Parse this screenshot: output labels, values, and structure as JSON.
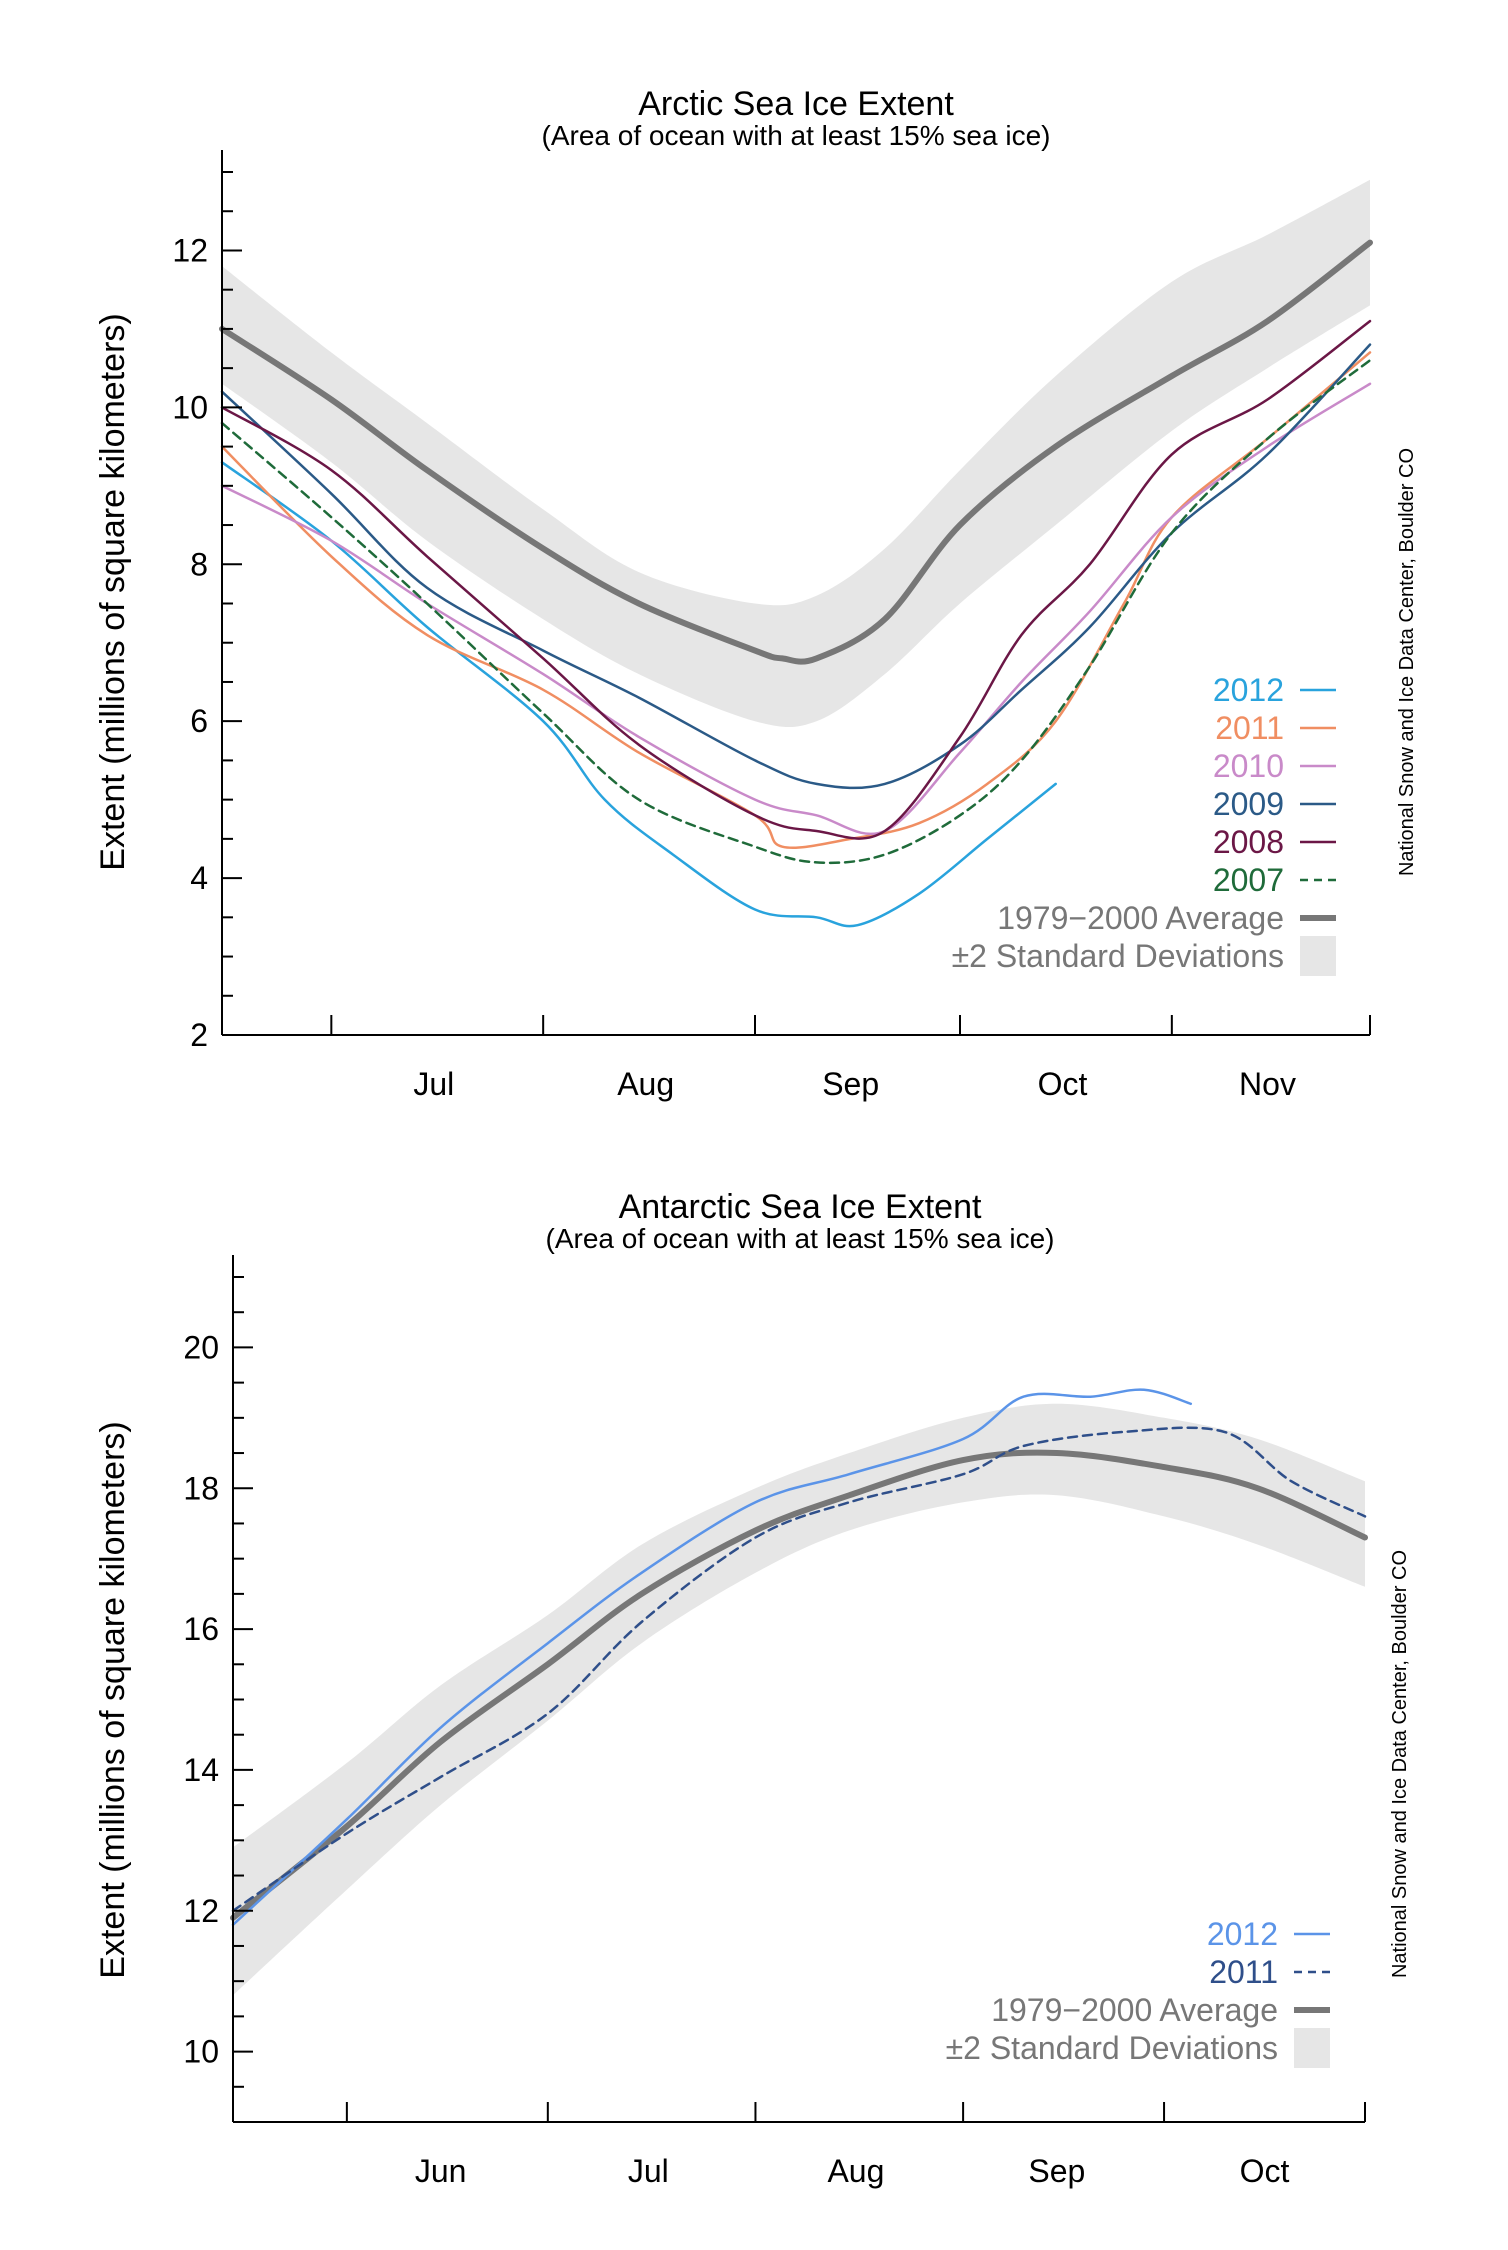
{
  "chart_data": [
    {
      "type": "line",
      "title": "Arctic Sea Ice Extent",
      "subtitle": "(Area of ocean with at least 15% sea ice)",
      "ylabel": "Extent (millions of square kilometers)",
      "credit": "National Snow and Ice Data Center, Boulder CO",
      "xlim": [
        "Jun 15",
        "Nov 30"
      ],
      "ylim": [
        2,
        13
      ],
      "yticks": [
        2,
        4,
        6,
        8,
        10,
        12
      ],
      "month_ticks": [
        "Jul 1",
        "Aug 1",
        "Sep 1",
        "Oct 1",
        "Nov 1"
      ],
      "month_labels": [
        {
          "label": "Jul",
          "at": "Jul 16"
        },
        {
          "label": "Aug",
          "at": "Aug 16"
        },
        {
          "label": "Sep",
          "at": "Sep 15"
        },
        {
          "label": "Oct",
          "at": "Oct 16"
        },
        {
          "label": "Nov",
          "at": "Nov 15"
        }
      ],
      "band": {
        "name": "±2 Standard Deviations",
        "color": "#e6e6e6",
        "points": [
          [
            "Jun 15",
            10.3,
            11.8
          ],
          [
            "Jul 1",
            9.3,
            10.7
          ],
          [
            "Jul 15",
            8.3,
            9.8
          ],
          [
            "Aug 1",
            7.3,
            8.7
          ],
          [
            "Aug 15",
            6.6,
            7.9
          ],
          [
            "Sep 1",
            6.0,
            7.5
          ],
          [
            "Sep 10",
            6.0,
            7.6
          ],
          [
            "Sep 20",
            6.6,
            8.2
          ],
          [
            "Oct 1",
            7.5,
            9.2
          ],
          [
            "Oct 15",
            8.5,
            10.4
          ],
          [
            "Nov 1",
            9.7,
            11.6
          ],
          [
            "Nov 15",
            10.5,
            12.2
          ],
          [
            "Nov 30",
            11.3,
            12.9
          ]
        ]
      },
      "series": [
        {
          "name": "1979−2000 Average",
          "color": "#777777",
          "dash": false,
          "width": 6,
          "points": [
            [
              "Jun 15",
              11.0
            ],
            [
              "Jul 1",
              10.1
            ],
            [
              "Jul 15",
              9.2
            ],
            [
              "Aug 1",
              8.2
            ],
            [
              "Aug 15",
              7.5
            ],
            [
              "Sep 1",
              6.9
            ],
            [
              "Sep 5",
              6.8
            ],
            [
              "Sep 10",
              6.8
            ],
            [
              "Sep 20",
              7.3
            ],
            [
              "Oct 1",
              8.5
            ],
            [
              "Oct 15",
              9.5
            ],
            [
              "Nov 1",
              10.4
            ],
            [
              "Nov 15",
              11.1
            ],
            [
              "Nov 30",
              12.1
            ]
          ]
        },
        {
          "name": "2012",
          "color": "#29a3dd",
          "dash": false,
          "width": 2.5,
          "points": [
            [
              "Jun 15",
              9.3
            ],
            [
              "Jul 1",
              8.3
            ],
            [
              "Jul 15",
              7.2
            ],
            [
              "Aug 1",
              6.0
            ],
            [
              "Aug 10",
              5.0
            ],
            [
              "Aug 20",
              4.3
            ],
            [
              "Sep 1",
              3.6
            ],
            [
              "Sep 10",
              3.5
            ],
            [
              "Sep 16",
              3.4
            ],
            [
              "Sep 25",
              3.8
            ],
            [
              "Oct 5",
              4.5
            ],
            [
              "Oct 15",
              5.2
            ]
          ]
        },
        {
          "name": "2011",
          "color": "#f08e62",
          "dash": false,
          "width": 2.5,
          "points": [
            [
              "Jun 15",
              9.5
            ],
            [
              "Jul 1",
              8.1
            ],
            [
              "Jul 15",
              7.1
            ],
            [
              "Aug 1",
              6.4
            ],
            [
              "Aug 15",
              5.6
            ],
            [
              "Sep 1",
              4.8
            ],
            [
              "Sep 5",
              4.4
            ],
            [
              "Sep 15",
              4.5
            ],
            [
              "Sep 25",
              4.7
            ],
            [
              "Oct 5",
              5.2
            ],
            [
              "Oct 15",
              6.0
            ],
            [
              "Oct 25",
              7.5
            ],
            [
              "Nov 1",
              8.6
            ],
            [
              "Nov 15",
              9.6
            ],
            [
              "Nov 30",
              10.7
            ]
          ]
        },
        {
          "name": "2010",
          "color": "#c98ac9",
          "dash": false,
          "width": 2.5,
          "points": [
            [
              "Jun 15",
              9.0
            ],
            [
              "Jul 1",
              8.3
            ],
            [
              "Jul 15",
              7.5
            ],
            [
              "Aug 1",
              6.6
            ],
            [
              "Aug 15",
              5.8
            ],
            [
              "Sep 1",
              5.0
            ],
            [
              "Sep 10",
              4.8
            ],
            [
              "Sep 20",
              4.6
            ],
            [
              "Oct 1",
              5.6
            ],
            [
              "Oct 10",
              6.5
            ],
            [
              "Oct 20",
              7.4
            ],
            [
              "Nov 1",
              8.6
            ],
            [
              "Nov 15",
              9.5
            ],
            [
              "Nov 30",
              10.3
            ]
          ]
        },
        {
          "name": "2009",
          "color": "#2b5a87",
          "dash": false,
          "width": 2.5,
          "points": [
            [
              "Jun 15",
              10.2
            ],
            [
              "Jul 1",
              8.9
            ],
            [
              "Jul 15",
              7.7
            ],
            [
              "Aug 1",
              6.9
            ],
            [
              "Aug 15",
              6.3
            ],
            [
              "Sep 1",
              5.5
            ],
            [
              "Sep 10",
              5.2
            ],
            [
              "Sep 20",
              5.2
            ],
            [
              "Oct 1",
              5.7
            ],
            [
              "Oct 10",
              6.4
            ],
            [
              "Oct 20",
              7.2
            ],
            [
              "Nov 1",
              8.4
            ],
            [
              "Nov 15",
              9.4
            ],
            [
              "Nov 30",
              10.8
            ]
          ]
        },
        {
          "name": "2008",
          "color": "#6b1746",
          "dash": false,
          "width": 2.5,
          "points": [
            [
              "Jun 15",
              10.0
            ],
            [
              "Jul 1",
              9.2
            ],
            [
              "Jul 15",
              8.1
            ],
            [
              "Aug 1",
              6.8
            ],
            [
              "Aug 15",
              5.7
            ],
            [
              "Sep 1",
              4.8
            ],
            [
              "Sep 10",
              4.6
            ],
            [
              "Sep 20",
              4.6
            ],
            [
              "Oct 1",
              5.8
            ],
            [
              "Oct 10",
              7.1
            ],
            [
              "Oct 20",
              8.0
            ],
            [
              "Nov 1",
              9.4
            ],
            [
              "Nov 15",
              10.1
            ],
            [
              "Nov 30",
              11.1
            ]
          ]
        },
        {
          "name": "2007",
          "color": "#1f6b3a",
          "dash": true,
          "width": 2.5,
          "points": [
            [
              "Jun 15",
              9.8
            ],
            [
              "Jul 1",
              8.6
            ],
            [
              "Jul 15",
              7.5
            ],
            [
              "Aug 1",
              6.1
            ],
            [
              "Aug 15",
              5.0
            ],
            [
              "Sep 1",
              4.4
            ],
            [
              "Sep 10",
              4.2
            ],
            [
              "Sep 20",
              4.3
            ],
            [
              "Oct 1",
              4.8
            ],
            [
              "Oct 10",
              5.5
            ],
            [
              "Oct 20",
              6.7
            ],
            [
              "Nov 1",
              8.4
            ],
            [
              "Nov 15",
              9.6
            ],
            [
              "Nov 30",
              10.6
            ]
          ]
        }
      ]
    },
    {
      "type": "line",
      "title": "Antarctic Sea Ice Extent",
      "subtitle": "(Area of ocean with at least 15% sea ice)",
      "ylabel": "Extent (millions of square kilometers)",
      "credit": "National Snow and Ice Data Center, Boulder CO",
      "xlim": [
        "May 15",
        "Oct 31"
      ],
      "ylim": [
        9,
        21
      ],
      "yticks": [
        10,
        12,
        14,
        16,
        18,
        20
      ],
      "month_ticks": [
        "Jun 1",
        "Jul 1",
        "Aug 1",
        "Sep 1",
        "Oct 1"
      ],
      "month_labels": [
        {
          "label": "Jun",
          "at": "Jun 15"
        },
        {
          "label": "Jul",
          "at": "Jul 16"
        },
        {
          "label": "Aug",
          "at": "Aug 16"
        },
        {
          "label": "Sep",
          "at": "Sep 15"
        },
        {
          "label": "Oct",
          "at": "Oct 16"
        }
      ],
      "band": {
        "name": "±2 Standard Deviations",
        "color": "#e6e6e6",
        "points": [
          [
            "May 15",
            10.8,
            12.9
          ],
          [
            "Jun 1",
            12.3,
            14.1
          ],
          [
            "Jun 15",
            13.5,
            15.2
          ],
          [
            "Jul 1",
            14.7,
            16.2
          ],
          [
            "Jul 15",
            15.8,
            17.2
          ],
          [
            "Aug 1",
            16.8,
            18.0
          ],
          [
            "Aug 15",
            17.4,
            18.5
          ],
          [
            "Sep 1",
            17.8,
            19.0
          ],
          [
            "Sep 15",
            17.9,
            19.2
          ],
          [
            "Oct 1",
            17.6,
            19.0
          ],
          [
            "Oct 15",
            17.2,
            18.7
          ],
          [
            "Oct 31",
            16.6,
            18.1
          ]
        ]
      },
      "series": [
        {
          "name": "1979−2000 Average",
          "color": "#777777",
          "dash": false,
          "width": 6,
          "points": [
            [
              "May 15",
              11.9
            ],
            [
              "Jun 1",
              13.2
            ],
            [
              "Jun 15",
              14.4
            ],
            [
              "Jul 1",
              15.5
            ],
            [
              "Jul 15",
              16.5
            ],
            [
              "Aug 1",
              17.4
            ],
            [
              "Aug 15",
              17.9
            ],
            [
              "Sep 1",
              18.4
            ],
            [
              "Sep 15",
              18.5
            ],
            [
              "Oct 1",
              18.3
            ],
            [
              "Oct 15",
              18.0
            ],
            [
              "Oct 31",
              17.3
            ]
          ]
        },
        {
          "name": "2012",
          "color": "#5b94e8",
          "dash": false,
          "width": 2.5,
          "points": [
            [
              "May 15",
              11.8
            ],
            [
              "Jun 1",
              13.3
            ],
            [
              "Jun 15",
              14.6
            ],
            [
              "Jul 1",
              15.8
            ],
            [
              "Jul 15",
              16.8
            ],
            [
              "Aug 1",
              17.8
            ],
            [
              "Aug 15",
              18.2
            ],
            [
              "Sep 1",
              18.7
            ],
            [
              "Sep 10",
              19.3
            ],
            [
              "Sep 20",
              19.3
            ],
            [
              "Sep 28",
              19.4
            ],
            [
              "Oct 5",
              19.2
            ]
          ]
        },
        {
          "name": "2011",
          "color": "#2f4f8a",
          "dash": true,
          "width": 2.5,
          "points": [
            [
              "May 15",
              12.0
            ],
            [
              "Jun 1",
              13.1
            ],
            [
              "Jun 15",
              13.9
            ],
            [
              "Jul 1",
              14.8
            ],
            [
              "Jul 15",
              16.1
            ],
            [
              "Aug 1",
              17.3
            ],
            [
              "Aug 15",
              17.8
            ],
            [
              "Sep 1",
              18.2
            ],
            [
              "Sep 10",
              18.6
            ],
            [
              "Sep 25",
              18.8
            ],
            [
              "Oct 10",
              18.8
            ],
            [
              "Oct 20",
              18.1
            ],
            [
              "Oct 31",
              17.6
            ]
          ]
        }
      ]
    }
  ]
}
